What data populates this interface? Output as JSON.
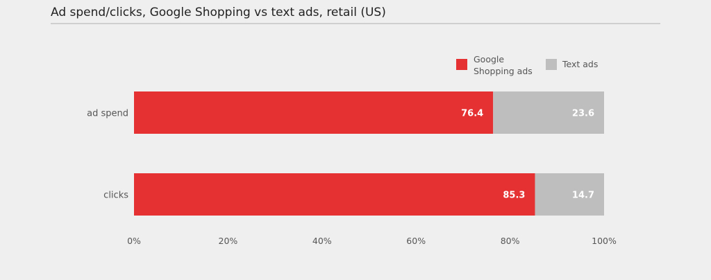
{
  "chart_data": {
    "type": "bar",
    "orientation": "horizontal",
    "stacked": true,
    "title": "Ad spend/clicks, Google Shopping vs text ads, retail (US)",
    "categories": [
      "ad spend",
      "clicks"
    ],
    "series": [
      {
        "name": "Google Shopping ads",
        "values": [
          76.4,
          85.3
        ],
        "color": "#e53132"
      },
      {
        "name": "Text ads",
        "values": [
          23.6,
          14.7
        ],
        "color": "#bebebe"
      }
    ],
    "data_labels": [
      [
        "76.4",
        "85.3"
      ],
      [
        "23.6",
        "14.7"
      ]
    ],
    "xlim": [
      0,
      100
    ],
    "x_ticks": [
      "0%",
      "20%",
      "40%",
      "60%",
      "80%",
      "100%"
    ],
    "legend_position": "top-right",
    "grid": false
  }
}
